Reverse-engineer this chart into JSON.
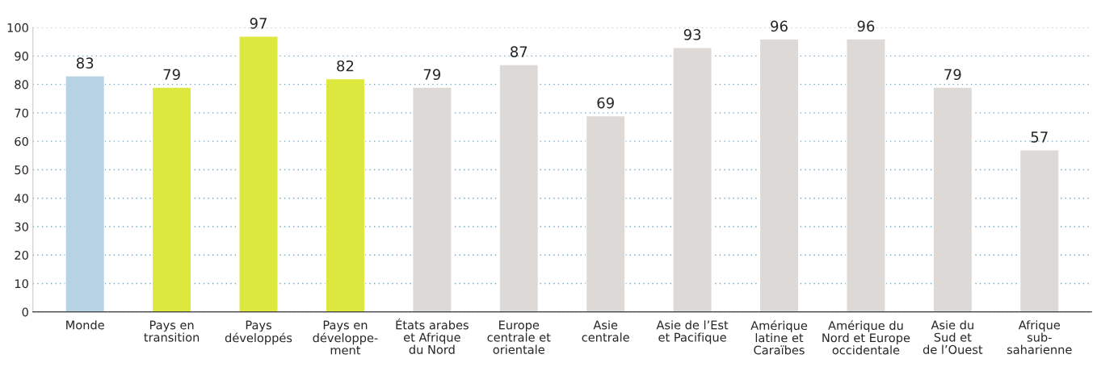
{
  "chart_data": {
    "type": "bar",
    "categories": [
      "Monde",
      "Pays en\ntransition",
      "Pays\ndéveloppés",
      "Pays en\ndéveloppe-\nment",
      "États arabes\net Afrique\ndu Nord",
      "Europe\ncentrale et\norientale",
      "Asie\ncentrale",
      "Asie de l’Est\net Pacifique",
      "Amérique\nlatine et\nCaraïbes",
      "Amérique du\nNord et Europe\noccidentale",
      "Asie du\nSud et\nde l’Ouest",
      "Afrique\nsub-\nsaharienne"
    ],
    "values": [
      83,
      79,
      97,
      82,
      79,
      87,
      69,
      93,
      96,
      96,
      79,
      57
    ],
    "colors": [
      "#b7d3e3",
      "#dce83e",
      "#dce83e",
      "#dce83e",
      "#ddd9d6",
      "#ddd9d6",
      "#ddd9d6",
      "#ddd9d6",
      "#ddd9d6",
      "#ddd9d6",
      "#ddd9d6",
      "#ddd9d6"
    ],
    "ylim": [
      0,
      100
    ],
    "yticks": [
      0,
      10,
      20,
      30,
      40,
      50,
      60,
      70,
      80,
      90,
      100
    ],
    "grid": "y",
    "data_labels": true
  }
}
